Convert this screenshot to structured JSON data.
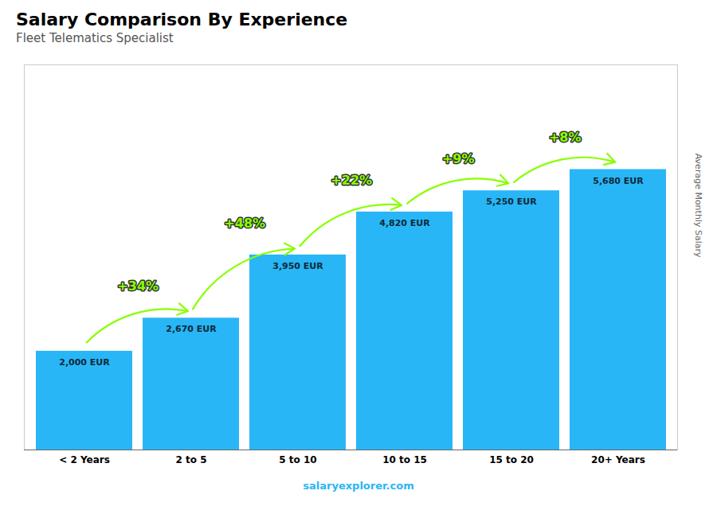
{
  "chart_data": {
    "type": "bar",
    "title": "Salary Comparison By Experience",
    "subtitle": "Fleet Telematics Specialist",
    "ylabel": "Average Monthly Salary",
    "caption": "salaryexplorer.com",
    "categories": [
      "< 2 Years",
      "2 to 5",
      "5 to 10",
      "10 to 15",
      "15 to 20",
      "20+ Years"
    ],
    "values": [
      2000,
      2670,
      3950,
      4820,
      5250,
      5680
    ],
    "value_labels": [
      "2,000 EUR",
      "2,670 EUR",
      "3,950 EUR",
      "4,820 EUR",
      "5,250 EUR",
      "5,680 EUR"
    ],
    "data_labels": true,
    "color": "#29b6f6",
    "ylim": [
      0,
      7800
    ],
    "tick_labels": "x",
    "grid": false,
    "annotations": [
      {
        "from": "< 2 Years",
        "to": "2 to 5",
        "text": "+34%",
        "color": "#88ff00"
      },
      {
        "from": "2 to 5",
        "to": "5 to 10",
        "text": "+48%",
        "color": "#88ff00"
      },
      {
        "from": "5 to 10",
        "to": "10 to 15",
        "text": "+22%",
        "color": "#88ff00"
      },
      {
        "from": "10 to 15",
        "to": "15 to 20",
        "text": "+9%",
        "color": "#88ff00"
      },
      {
        "from": "15 to 20",
        "to": "20+ Years",
        "text": "+8%",
        "color": "#88ff00"
      }
    ]
  }
}
